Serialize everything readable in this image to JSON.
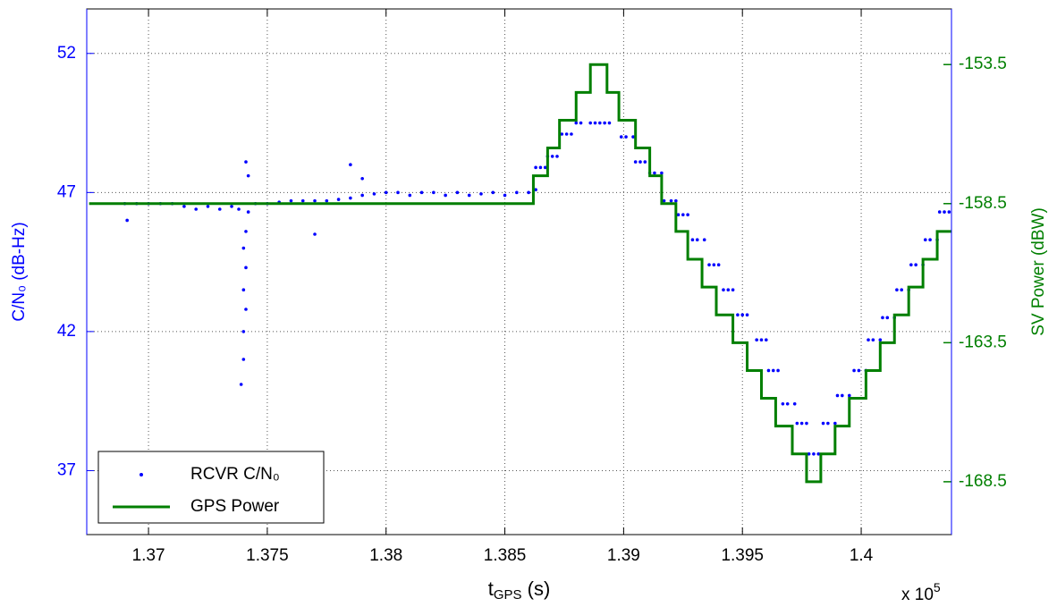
{
  "chart_data": {
    "type": "line",
    "xlabel": {
      "main": "t",
      "sub": "GPS",
      "tail": " (s)"
    },
    "ylabel": "C/N₀ (dB-Hz)",
    "y2label": "SV Power (dBW)",
    "x_multiplier": {
      "base": "x 10",
      "exponent": "5"
    },
    "xlim": [
      1.3674,
      1.4038
    ],
    "xticks": [
      1.37,
      1.375,
      1.38,
      1.385,
      1.39,
      1.395,
      1.4
    ],
    "ylim": [
      34.7,
      53.6
    ],
    "yticks": [
      37,
      42,
      47,
      52
    ],
    "y2lim": [
      -170.4,
      -151.5
    ],
    "y2ticks": [
      -168.5,
      -163.5,
      -158.5,
      -153.5
    ],
    "ycolor": "#0000ff",
    "y2color": "#007f00",
    "grid": true,
    "legend": "lower left",
    "series": [
      {
        "name": "RCVR C/N₀",
        "type": "scatter",
        "color": "#0000ff",
        "axis": "y",
        "x": [
          1.369,
          1.3691,
          1.3695,
          1.37,
          1.3705,
          1.371,
          1.3715,
          1.372,
          1.3725,
          1.373,
          1.3735,
          1.3738,
          1.3739,
          1.374,
          1.374,
          1.3741,
          1.374,
          1.3741,
          1.374,
          1.3741,
          1.3741,
          1.3742,
          1.3742,
          1.3745,
          1.375,
          1.3755,
          1.376,
          1.3765,
          1.377,
          1.377,
          1.3775,
          1.378,
          1.3785,
          1.3785,
          1.379,
          1.379,
          1.3795,
          1.38,
          1.3805,
          1.381,
          1.3815,
          1.382,
          1.3825,
          1.383,
          1.3835,
          1.384,
          1.3845,
          1.385,
          1.3855,
          1.386,
          1.3863,
          1.3863,
          1.3865,
          1.3867,
          1.3868,
          1.387,
          1.3872,
          1.3874,
          1.3876,
          1.3878,
          1.388,
          1.3882,
          1.3886,
          1.3888,
          1.389,
          1.3892,
          1.3894,
          1.3899,
          1.3901,
          1.3904,
          1.3905,
          1.3907,
          1.3909,
          1.3911,
          1.3913,
          1.3916,
          1.3917,
          1.392,
          1.3922,
          1.3923,
          1.3925,
          1.3927,
          1.3929,
          1.3931,
          1.3934,
          1.3936,
          1.3938,
          1.394,
          1.3942,
          1.3944,
          1.3946,
          1.3948,
          1.395,
          1.3952,
          1.3956,
          1.3958,
          1.396,
          1.3961,
          1.3963,
          1.3965,
          1.3967,
          1.3969,
          1.3972,
          1.3973,
          1.3975,
          1.3977,
          1.3978,
          1.398,
          1.3982,
          1.3984,
          1.3986,
          1.3989,
          1.399,
          1.3992,
          1.3995,
          1.3997,
          1.3999,
          1.4002,
          1.4003,
          1.4005,
          1.4008,
          1.4009,
          1.4011,
          1.4014,
          1.4015,
          1.4017,
          1.402,
          1.4021,
          1.4023,
          1.4026,
          1.4027,
          1.4029,
          1.4032,
          1.4033,
          1.4035,
          1.4037
        ],
        "values": [
          46.6,
          46.0,
          46.6,
          46.6,
          46.6,
          46.6,
          46.5,
          46.4,
          46.5,
          46.4,
          46.5,
          46.4,
          40.1,
          41.0,
          42.0,
          42.8,
          43.5,
          44.3,
          45.0,
          45.6,
          48.1,
          47.6,
          46.3,
          46.6,
          46.6,
          46.65,
          46.7,
          46.7,
          45.5,
          46.7,
          46.7,
          46.75,
          48.0,
          46.8,
          47.5,
          46.9,
          46.95,
          47.0,
          47.0,
          46.9,
          47.0,
          47.0,
          46.9,
          47.0,
          46.9,
          46.95,
          47.0,
          46.9,
          47.0,
          47.0,
          47.1,
          47.9,
          47.9,
          47.9,
          48.3,
          48.3,
          48.3,
          49.1,
          49.1,
          49.1,
          49.5,
          49.5,
          49.5,
          49.5,
          49.5,
          49.5,
          49.5,
          49.0,
          49.0,
          49.0,
          48.1,
          48.1,
          48.1,
          47.7,
          47.7,
          47.7,
          46.7,
          46.7,
          46.7,
          46.2,
          46.2,
          46.2,
          45.3,
          45.3,
          45.3,
          44.4,
          44.4,
          44.4,
          43.5,
          43.5,
          43.5,
          42.6,
          42.6,
          42.6,
          41.7,
          41.7,
          41.7,
          40.6,
          40.6,
          40.6,
          39.4,
          39.4,
          39.4,
          38.7,
          38.7,
          38.7,
          37.6,
          37.6,
          37.6,
          38.7,
          38.7,
          38.7,
          39.7,
          39.7,
          39.7,
          40.6,
          40.6,
          40.6,
          41.7,
          41.7,
          41.7,
          42.5,
          42.5,
          42.5,
          43.5,
          43.5,
          43.5,
          44.4,
          44.4,
          44.4,
          45.3,
          45.3,
          45.3,
          46.3,
          46.3,
          46.3
        ]
      },
      {
        "name": "GPS Power",
        "type": "line",
        "step": "post",
        "color": "#007f00",
        "axis": "y2",
        "x": [
          1.3675,
          1.3862,
          1.3868,
          1.3873,
          1.388,
          1.3886,
          1.3893,
          1.3898,
          1.3905,
          1.3911,
          1.3916,
          1.3922,
          1.3927,
          1.3933,
          1.3939,
          1.3946,
          1.3952,
          1.3958,
          1.3964,
          1.3971,
          1.3977,
          1.3983,
          1.3989,
          1.3995,
          1.4002,
          1.4008,
          1.4014,
          1.402,
          1.4026,
          1.4032,
          1.4038
        ],
        "values": [
          -158.5,
          -157.5,
          -156.5,
          -155.5,
          -154.5,
          -153.5,
          -154.5,
          -155.5,
          -156.5,
          -157.5,
          -158.5,
          -159.5,
          -160.5,
          -161.5,
          -162.5,
          -163.5,
          -164.5,
          -165.5,
          -166.5,
          -167.5,
          -168.5,
          -167.5,
          -166.5,
          -165.5,
          -164.5,
          -163.5,
          -162.5,
          -161.5,
          -160.5,
          -159.5,
          -159.5
        ]
      }
    ]
  }
}
